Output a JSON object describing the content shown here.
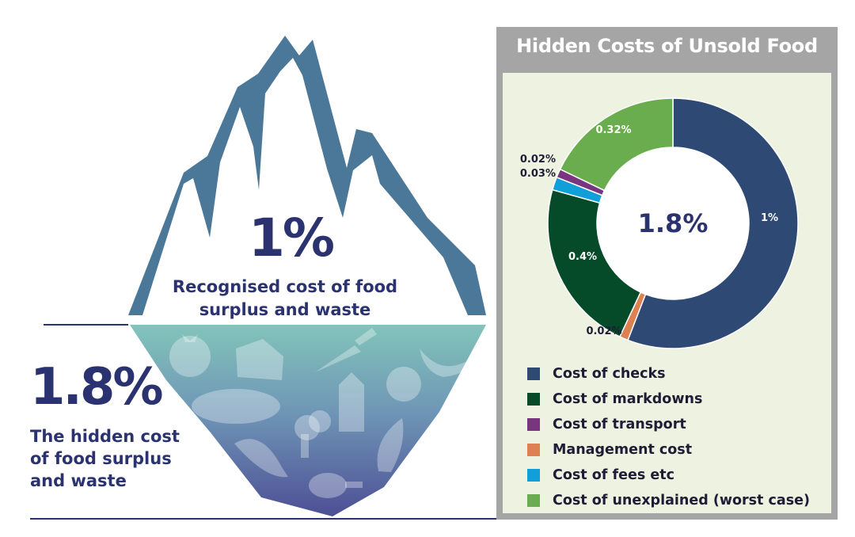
{
  "iceberg": {
    "tip_value": "1%",
    "tip_label_line1": "Recognised cost of food",
    "tip_label_line2": "surplus and waste",
    "hidden_value": "1.8%",
    "hidden_label_line1": "The hidden cost",
    "hidden_label_line2": "of food surplus",
    "hidden_label_line3": "and waste",
    "icons": [
      "tomato-icon",
      "cheese-icon",
      "carrot-icon",
      "bananas-icon",
      "bread-icon",
      "milk-carton-icon",
      "apple-icon",
      "broccoli-icon",
      "fish-icon",
      "fish-icon",
      "chicken-leg-icon"
    ],
    "colors": {
      "mountain": "#4b7898",
      "water_top": "#82c4ba",
      "water_bottom": "#4d4f95",
      "text": "#2a3370"
    }
  },
  "chart_data": {
    "type": "pie",
    "title": "Hidden Costs of Unsold Food",
    "center_label": "1.8%",
    "segments": [
      {
        "name": "Cost of checks",
        "value": 1,
        "label": "1%",
        "color": "#2e4a74"
      },
      {
        "name": "Management cost",
        "value": 0.02,
        "label": "0.02%",
        "color": "#de8152"
      },
      {
        "name": "Cost of markdowns",
        "value": 0.4,
        "label": "0.4%",
        "color": "#054a29"
      },
      {
        "name": "Cost of fees etc",
        "value": 0.03,
        "label": "0.03%",
        "color": "#109fd8"
      },
      {
        "name": "Cost of transport",
        "value": 0.02,
        "label": "0.02%",
        "color": "#7a3581"
      },
      {
        "name": "Cost of unexplained (worst case)",
        "value": 0.32,
        "label": "0.32%",
        "color": "#6aad4e"
      }
    ],
    "legend": [
      {
        "label": "Cost of checks",
        "color": "#2e4a74"
      },
      {
        "label": "Cost of markdowns",
        "color": "#054a29"
      },
      {
        "label": "Cost of transport",
        "color": "#7a3581"
      },
      {
        "label": "Management cost",
        "color": "#de8152"
      },
      {
        "label": "Cost of fees etc",
        "color": "#109fd8"
      },
      {
        "label": "Cost of unexplained (worst case)",
        "color": "#6aad4e"
      }
    ],
    "legend_position": "bottom"
  }
}
